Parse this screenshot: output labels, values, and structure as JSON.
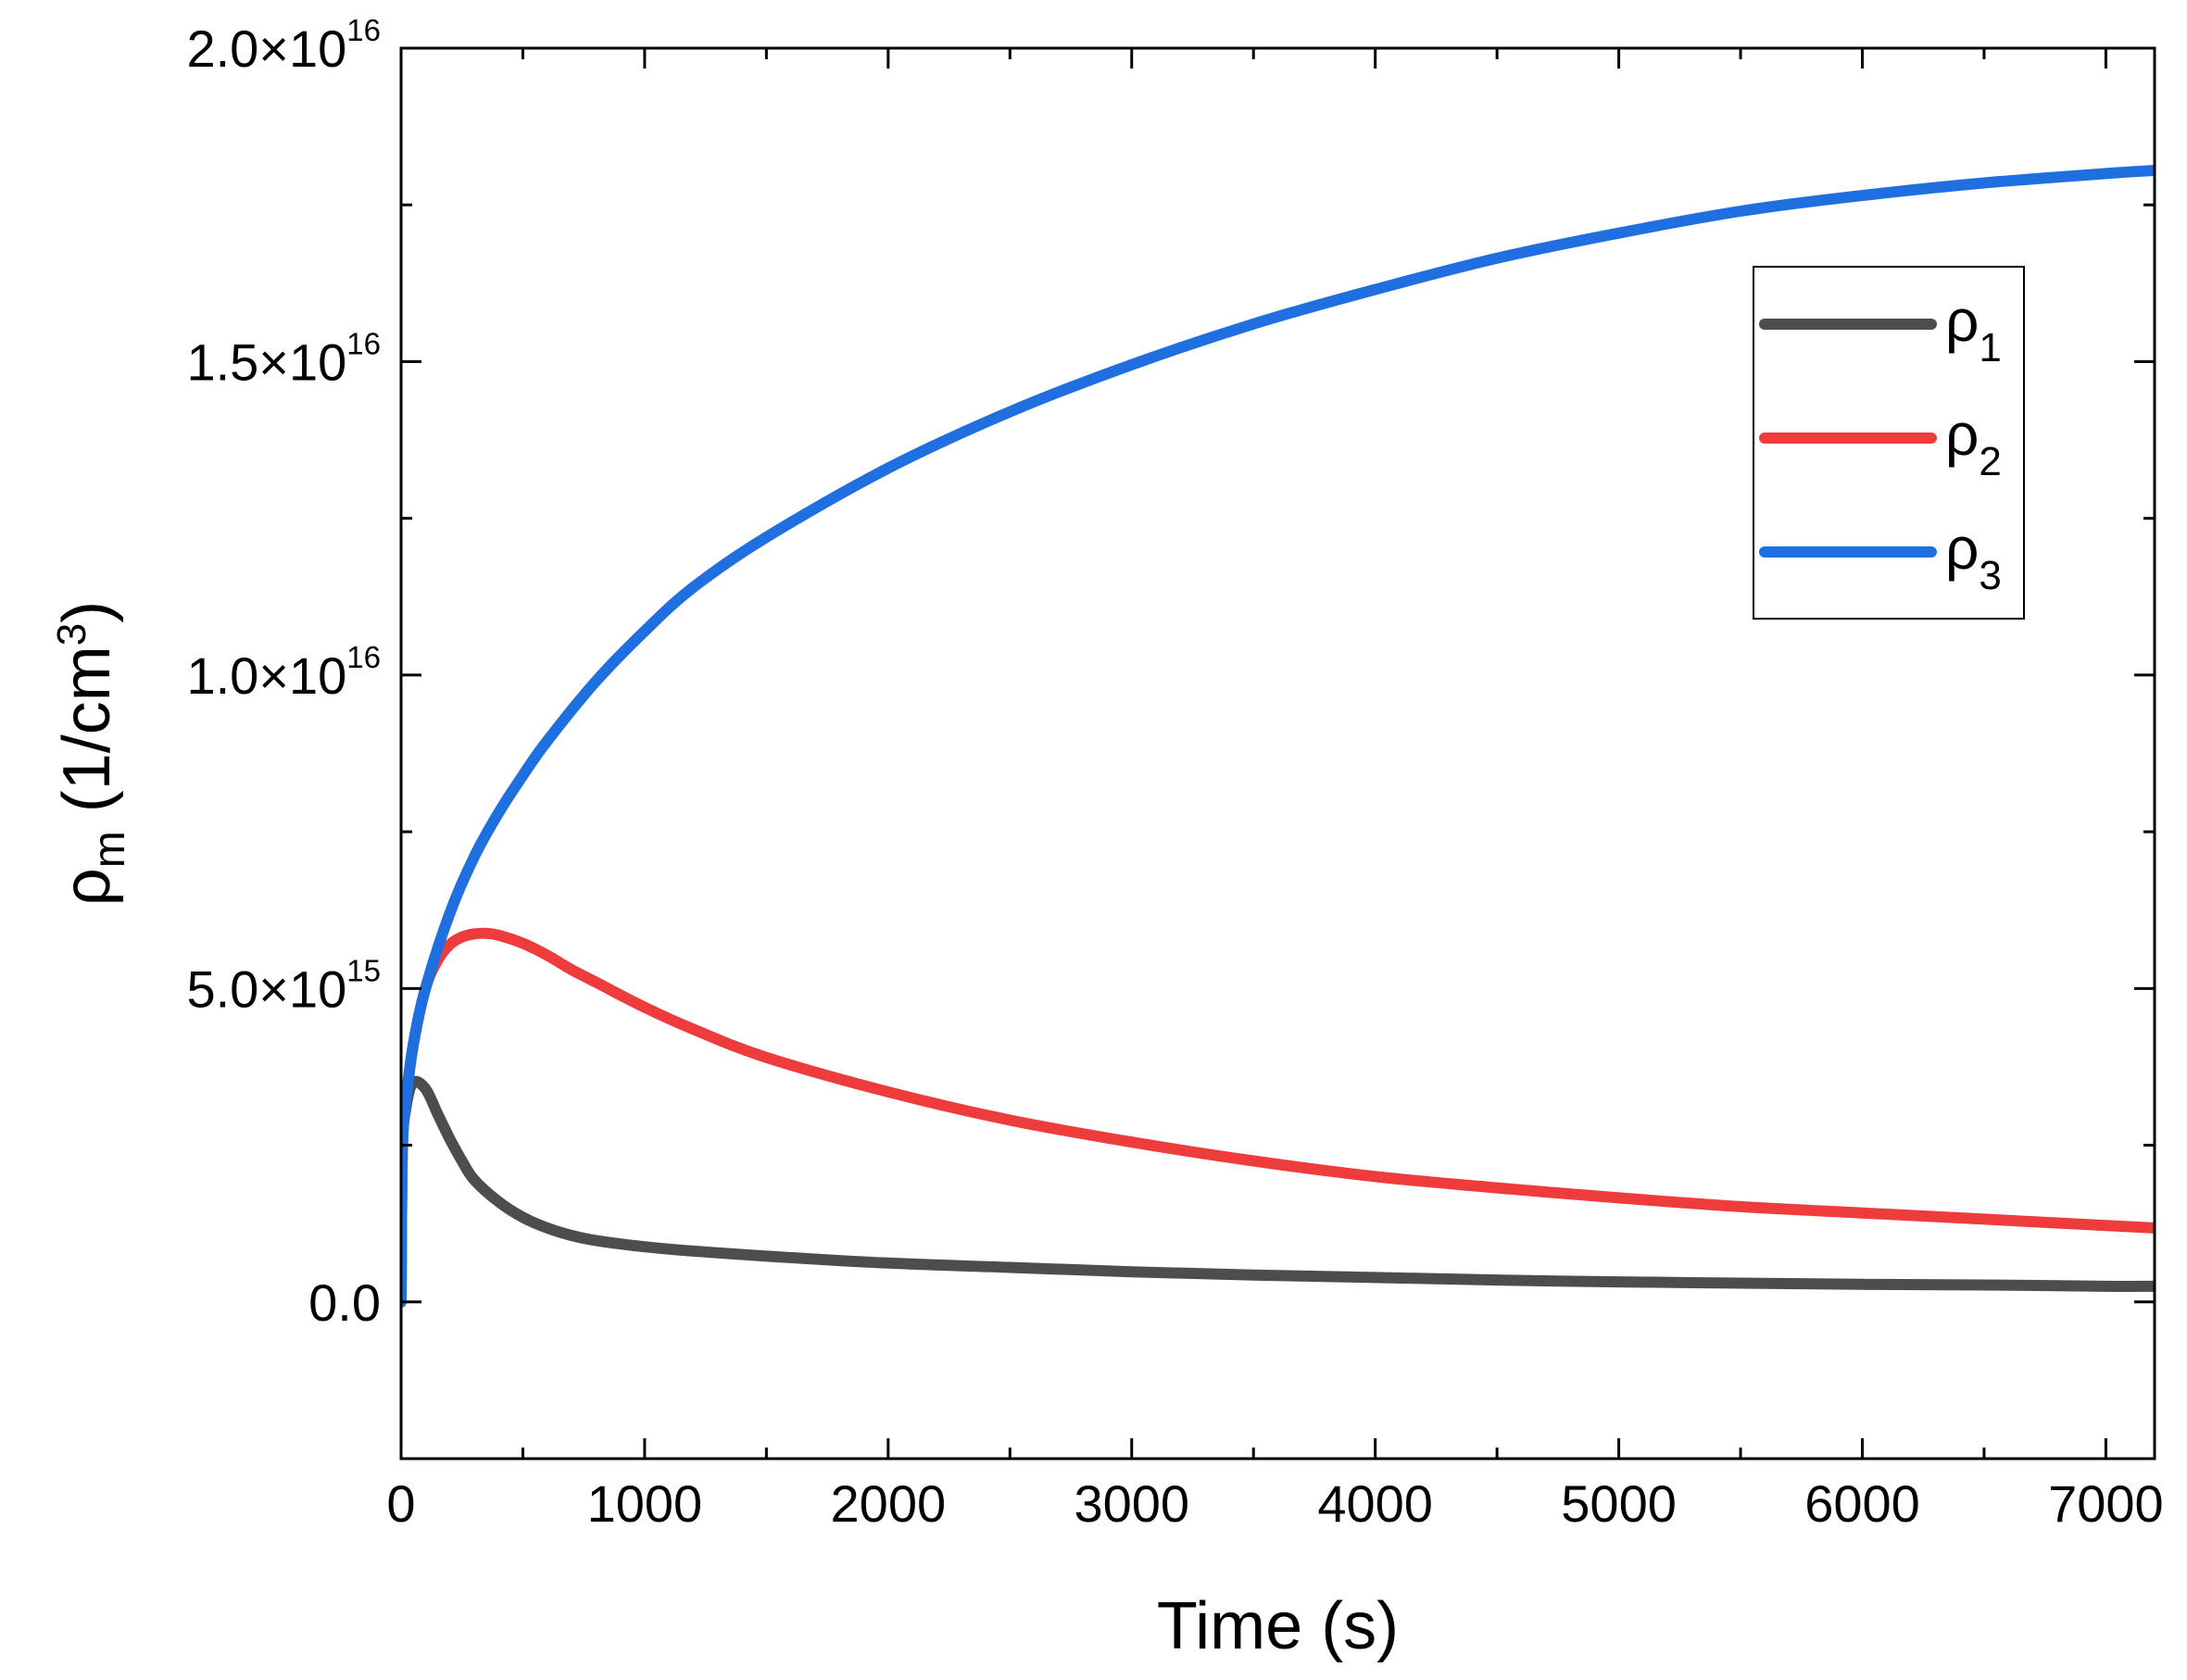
{
  "chart_data": {
    "type": "line",
    "title": "",
    "xlabel": "Time (s)",
    "ylabel": {
      "base": "ρ",
      "sub": "m",
      "prefix": " (1/cm",
      "sup": "3",
      "suffix": ")"
    },
    "xlim": [
      0,
      7200
    ],
    "ylim": [
      -2500000000000000.0,
      2e+16
    ],
    "x_ticks": [
      {
        "value": 0,
        "label": "0"
      },
      {
        "value": 1000,
        "label": "1000"
      },
      {
        "value": 2000,
        "label": "2000"
      },
      {
        "value": 3000,
        "label": "3000"
      },
      {
        "value": 4000,
        "label": "4000"
      },
      {
        "value": 5000,
        "label": "5000"
      },
      {
        "value": 6000,
        "label": "6000"
      },
      {
        "value": 7000,
        "label": "7000"
      }
    ],
    "x_minor_ticks": [
      500,
      1500,
      2500,
      3500,
      4500,
      5500,
      6500
    ],
    "y_ticks": [
      {
        "value": 0,
        "mantissa": "0.0",
        "exponent": ""
      },
      {
        "value": 5000000000000000.0,
        "mantissa": "5.0×10",
        "exponent": "15"
      },
      {
        "value": 1e+16,
        "mantissa": "1.0×10",
        "exponent": "16"
      },
      {
        "value": 1.5e+16,
        "mantissa": "1.5×10",
        "exponent": "16"
      },
      {
        "value": 2e+16,
        "mantissa": "2.0×10",
        "exponent": "16"
      }
    ],
    "y_minor_ticks": [
      -2500000000000000.0,
      2500000000000000.0,
      7500000000000000.0,
      1.25e+16,
      1.75e+16
    ],
    "legend_position": "top-right",
    "series": [
      {
        "name": "ρ1",
        "symbol": "ρ",
        "sub": "1",
        "color": "#4d4d4d",
        "x": [
          0,
          5,
          20,
          50,
          100,
          150,
          200,
          250,
          300,
          400,
          500,
          600,
          700,
          800,
          1000,
          1200,
          1500,
          2000,
          2500,
          3000,
          3500,
          4000,
          4500,
          5000,
          5500,
          6000,
          6500,
          7000,
          7200
        ],
        "y": [
          0,
          2400000000000000.0,
          3100000000000000.0,
          3500000000000000.0,
          3400000000000000.0,
          3000000000000000.0,
          2600000000000000.0,
          2250000000000000.0,
          1950000000000000.0,
          1600000000000000.0,
          1350000000000000.0,
          1180000000000000.0,
          1060000000000000.0,
          980000000000000.0,
          880000000000000.0,
          810000000000000.0,
          730000000000000.0,
          620000000000000.0,
          550000000000000.0,
          480000000000000.0,
          430000000000000.0,
          390000000000000.0,
          350000000000000.0,
          320000000000000.0,
          300000000000000.0,
          280000000000000.0,
          270000000000000.0,
          250000000000000.0,
          250000000000000.0
        ]
      },
      {
        "name": "ρ2",
        "symbol": "ρ",
        "sub": "2",
        "color": "#ee3b3b",
        "x": [
          0,
          5,
          20,
          50,
          100,
          150,
          200,
          250,
          300,
          350,
          400,
          500,
          600,
          700,
          800,
          1000,
          1200,
          1500,
          2000,
          2500,
          3000,
          3500,
          4000,
          4500,
          5000,
          5500,
          6000,
          6500,
          7000,
          7200
        ],
        "y": [
          0,
          2400000000000000.0,
          3200000000000000.0,
          4100000000000000.0,
          5000000000000000.0,
          5450000000000000.0,
          5700000000000000.0,
          5820000000000000.0,
          5870000000000000.0,
          5880000000000000.0,
          5850000000000000.0,
          5720000000000000.0,
          5530000000000000.0,
          5300000000000000.0,
          5100000000000000.0,
          4700000000000000.0,
          4350000000000000.0,
          3900000000000000.0,
          3350000000000000.0,
          2900000000000000.0,
          2550000000000000.0,
          2250000000000000.0,
          2000000000000000.0,
          1820000000000000.0,
          1660000000000000.0,
          1520000000000000.0,
          1420000000000000.0,
          1320000000000000.0,
          1220000000000000.0,
          1180000000000000.0
        ]
      },
      {
        "name": "ρ3",
        "symbol": "ρ",
        "sub": "3",
        "color": "#1f6fe0",
        "x": [
          0,
          5,
          20,
          50,
          100,
          200,
          300,
          400,
          500,
          600,
          800,
          1000,
          1200,
          1500,
          2000,
          2500,
          3000,
          3500,
          4000,
          4500,
          5000,
          5500,
          6000,
          6500,
          7000,
          7200
        ],
        "y": [
          0,
          2400000000000000.0,
          3200000000000000.0,
          4100000000000000.0,
          5000000000000000.0,
          6200000000000000.0,
          7100000000000000.0,
          7800000000000000.0,
          8400000000000000.0,
          8950000000000000.0,
          9900000000000000.0,
          1.07e+16,
          1.14e+16,
          1.22e+16,
          1.33e+16,
          1.42e+16,
          1.495e+16,
          1.56e+16,
          1.615e+16,
          1.665e+16,
          1.705e+16,
          1.74e+16,
          1.765e+16,
          1.785e+16,
          1.8e+16,
          1.805e+16
        ]
      }
    ]
  }
}
